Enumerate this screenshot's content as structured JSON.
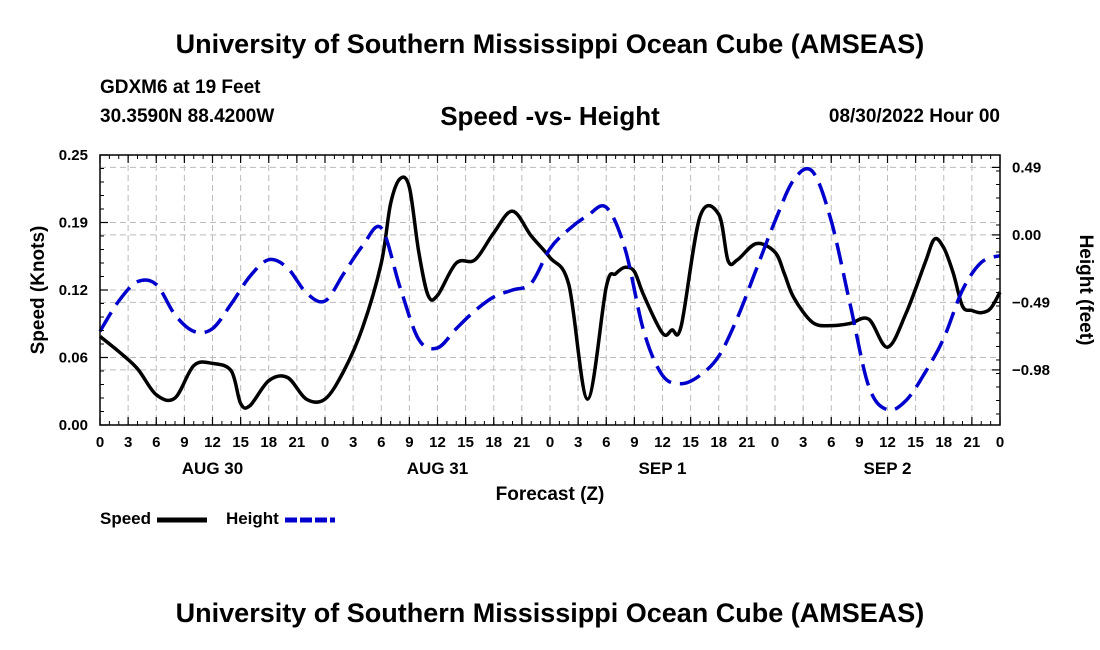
{
  "page": {
    "title": "University of Southern Mississippi Ocean Cube (AMSEAS)",
    "footer_title": "University of Southern Mississippi Ocean Cube (AMSEAS)",
    "station": "GDXM6 at 19 Feet",
    "coords": "30.3590N   88.4200W",
    "datetime": "08/30/2022 Hour 00"
  },
  "chart_data": {
    "type": "line",
    "title": "Speed -vs- Height",
    "xlabel": "Forecast (Z)",
    "ylabel": "Speed (Knots)",
    "y2label": "Height (feet)",
    "xlim": [
      0,
      96
    ],
    "ylim": [
      0,
      0.25
    ],
    "y2lim": [
      -1.38,
      0.58
    ],
    "yticks": [
      "0.00",
      "0.06",
      "0.12",
      "0.19",
      "0.25"
    ],
    "yticks_values": [
      0,
      0.0625,
      0.125,
      0.1875,
      0.25
    ],
    "y2ticks": [
      "0.49",
      "0.00",
      "−0.49",
      "−0.98"
    ],
    "y2ticks_values": [
      0.49,
      0.0,
      -0.49,
      -0.98
    ],
    "xticks": [
      "0",
      "3",
      "6",
      "9",
      "12",
      "15",
      "18",
      "21",
      "0",
      "3",
      "6",
      "9",
      "12",
      "15",
      "18",
      "21",
      "0",
      "3",
      "6",
      "9",
      "12",
      "15",
      "18",
      "21",
      "0",
      "3",
      "6",
      "9",
      "12",
      "15",
      "18",
      "21",
      "0"
    ],
    "days": [
      {
        "label": "AUG 30",
        "x": 12
      },
      {
        "label": "AUG 31",
        "x": 36
      },
      {
        "label": "SEP 1",
        "x": 60
      },
      {
        "label": "SEP 2",
        "x": 84
      }
    ],
    "grid": true,
    "series": [
      {
        "name": "Speed",
        "axis": "left",
        "color": "#000000",
        "dash": "solid",
        "x": [
          0,
          2,
          4,
          6,
          8,
          10,
          12,
          14,
          15,
          16,
          18,
          20,
          22,
          24,
          26,
          28,
          30,
          31,
          32,
          33,
          34,
          35,
          36,
          38,
          40,
          42,
          44,
          46,
          48,
          50,
          52,
          54,
          55,
          56,
          57,
          58,
          60,
          61,
          62,
          64,
          66,
          67,
          68,
          70,
          72,
          73,
          74,
          76,
          78,
          80,
          82,
          84,
          86,
          88,
          89,
          90,
          91,
          92,
          93,
          94,
          95,
          96
        ],
        "values": [
          0.082,
          0.068,
          0.052,
          0.028,
          0.025,
          0.055,
          0.057,
          0.05,
          0.02,
          0.018,
          0.041,
          0.044,
          0.024,
          0.024,
          0.05,
          0.09,
          0.15,
          0.205,
          0.228,
          0.22,
          0.16,
          0.12,
          0.12,
          0.15,
          0.153,
          0.178,
          0.198,
          0.175,
          0.155,
          0.13,
          0.024,
          0.128,
          0.14,
          0.146,
          0.142,
          0.12,
          0.085,
          0.088,
          0.092,
          0.193,
          0.195,
          0.152,
          0.153,
          0.168,
          0.16,
          0.14,
          0.118,
          0.095,
          0.092,
          0.094,
          0.098,
          0.072,
          0.104,
          0.15,
          0.172,
          0.164,
          0.141,
          0.11,
          0.106,
          0.104,
          0.108,
          0.123
        ]
      },
      {
        "name": "Height",
        "axis": "right",
        "color": "#0000cc",
        "dash": "dashed",
        "x": [
          0,
          2,
          4,
          6,
          8,
          10,
          12,
          14,
          16,
          18,
          20,
          22,
          24,
          26,
          28,
          30,
          32,
          34,
          36,
          38,
          40,
          42,
          44,
          46,
          48,
          50,
          52,
          54,
          56,
          58,
          60,
          62,
          64,
          66,
          68,
          70,
          72,
          74,
          76,
          78,
          80,
          82,
          84,
          86,
          88,
          90,
          92,
          94,
          96
        ],
        "values": [
          -0.7,
          -0.48,
          -0.34,
          -0.36,
          -0.58,
          -0.7,
          -0.68,
          -0.5,
          -0.3,
          -0.18,
          -0.24,
          -0.42,
          -0.48,
          -0.28,
          -0.08,
          0.05,
          -0.38,
          -0.76,
          -0.82,
          -0.68,
          -0.55,
          -0.45,
          -0.4,
          -0.35,
          -0.1,
          0.04,
          0.14,
          0.2,
          -0.1,
          -0.7,
          -1.02,
          -1.08,
          -1.02,
          -0.88,
          -0.6,
          -0.25,
          0.1,
          0.4,
          0.46,
          0.1,
          -0.5,
          -1.1,
          -1.27,
          -1.2,
          -1.0,
          -0.75,
          -0.4,
          -0.2,
          -0.15
        ]
      }
    ],
    "legend_position": "bottom-left"
  }
}
